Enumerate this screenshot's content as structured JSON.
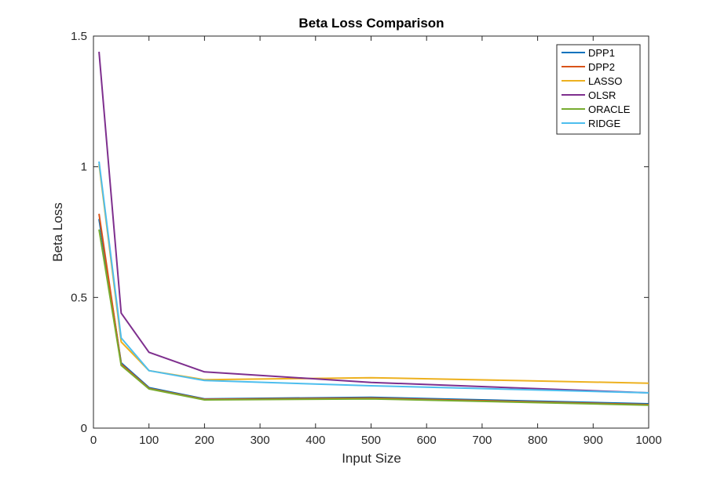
{
  "chart_data": {
    "type": "line",
    "title": "Beta Loss Comparison",
    "xlabel": "Input Size",
    "ylabel": "Beta Loss",
    "xlim": [
      0,
      1000
    ],
    "ylim": [
      0,
      1.5
    ],
    "xticks": [
      0,
      100,
      200,
      300,
      400,
      500,
      600,
      700,
      800,
      900,
      1000
    ],
    "yticks": [
      0,
      0.5,
      1,
      1.5
    ],
    "xtick_labels": [
      "0",
      "100",
      "200",
      "300",
      "400",
      "500",
      "600",
      "700",
      "800",
      "900",
      "1000"
    ],
    "ytick_labels": [
      "0",
      "0.5",
      "1",
      "1.5"
    ],
    "grid": false,
    "legend_position": "top-right",
    "x": [
      10,
      50,
      100,
      200,
      500,
      1000
    ],
    "series": [
      {
        "name": "DPP1",
        "color": "#0072BD",
        "values": [
          0.8,
          0.25,
          0.155,
          0.112,
          0.118,
          0.093
        ]
      },
      {
        "name": "DPP2",
        "color": "#D95319",
        "values": [
          0.82,
          0.245,
          0.152,
          0.11,
          0.115,
          0.09
        ]
      },
      {
        "name": "LASSO",
        "color": "#EDB120",
        "values": [
          1.01,
          0.33,
          0.22,
          0.185,
          0.193,
          0.172
        ]
      },
      {
        "name": "OLSR",
        "color": "#7E2F8E",
        "values": [
          1.44,
          0.44,
          0.29,
          0.215,
          0.175,
          0.135
        ]
      },
      {
        "name": "ORACLE",
        "color": "#77AC30",
        "values": [
          0.76,
          0.24,
          0.15,
          0.108,
          0.112,
          0.088
        ]
      },
      {
        "name": "RIDGE",
        "color": "#4DBEEE",
        "values": [
          1.02,
          0.345,
          0.22,
          0.182,
          0.162,
          0.135
        ]
      }
    ]
  }
}
